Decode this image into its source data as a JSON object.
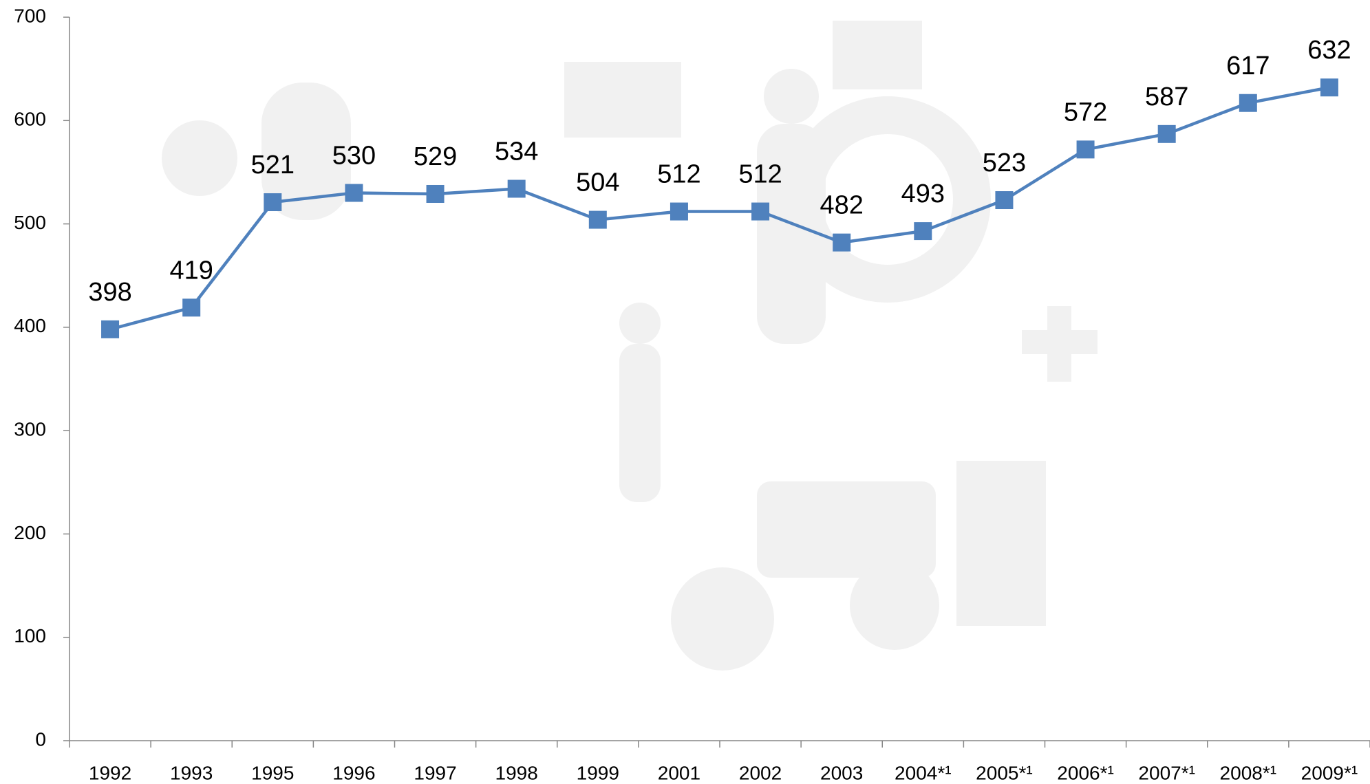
{
  "chart_data": {
    "type": "line",
    "categories": [
      "1992",
      "1993",
      "1995",
      "1996",
      "1997",
      "1998",
      "1999",
      "2001",
      "2002",
      "2003",
      "2004*¹",
      "2005*¹",
      "2006*¹",
      "2007*¹",
      "2008*¹",
      "2009*¹"
    ],
    "series": [
      {
        "color": "#4f81bd",
        "values": [
          398,
          419,
          521,
          530,
          529,
          534,
          504,
          512,
          512,
          482,
          493,
          523,
          572,
          587,
          617,
          632
        ]
      }
    ],
    "ylim": [
      0,
      700
    ],
    "yticks": [
      0,
      100,
      200,
      300,
      400,
      500,
      600,
      700
    ],
    "data_labels": true
  }
}
